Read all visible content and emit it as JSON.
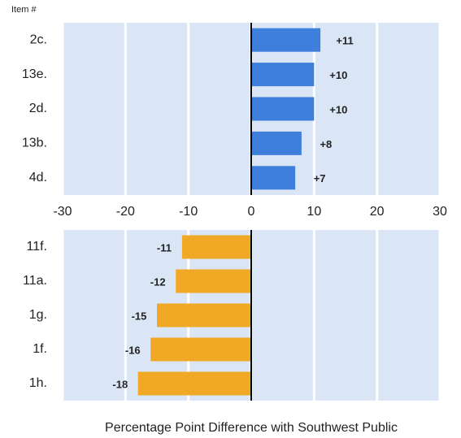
{
  "chart_data": [
    {
      "type": "bar",
      "orientation": "horizontal",
      "y_label": "Item #",
      "categories": [
        "2c.",
        "13e.",
        "2d.",
        "13b.",
        "4d."
      ],
      "values": [
        11,
        10,
        10,
        8,
        7
      ],
      "value_labels": [
        "+11",
        "+10",
        "+10",
        "+8",
        "+7"
      ],
      "color": "#3f7fdc",
      "xlim": [
        -30,
        30
      ],
      "xticks": [
        -30,
        -20,
        -10,
        0,
        10,
        20,
        30
      ],
      "grid": true
    },
    {
      "type": "bar",
      "orientation": "horizontal",
      "categories": [
        "11f.",
        "11a.",
        "1g.",
        "1f.",
        "1h."
      ],
      "values": [
        -11,
        -12,
        -15,
        -16,
        -18
      ],
      "color": "#f0a825",
      "xlim": [
        -30,
        30
      ],
      "grid": true,
      "xlabel": "Percentage Point Difference with Southwest Public"
    }
  ]
}
